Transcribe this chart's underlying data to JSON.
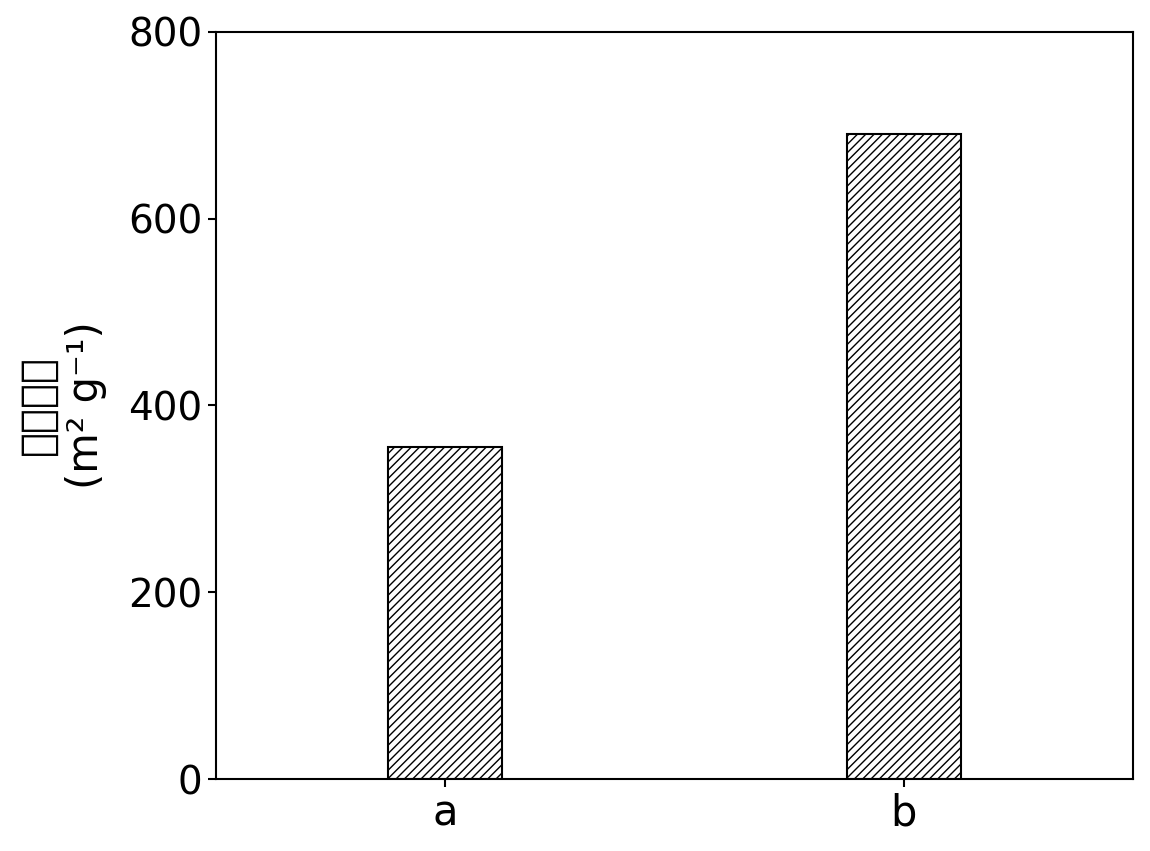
{
  "categories": [
    "a",
    "b"
  ],
  "values": [
    355,
    690
  ],
  "bar_colors": [
    "white",
    "white"
  ],
  "bar_edgecolors": [
    "black",
    "black"
  ],
  "hatch_pattern": "////",
  "ylabel_chinese": "比表面积",
  "ylabel_unit": "(m² g⁻¹)",
  "ylim": [
    0,
    800
  ],
  "yticks": [
    0,
    200,
    400,
    600,
    800
  ],
  "bar_width": 0.25,
  "x_positions": [
    1,
    2
  ],
  "xlim": [
    0.5,
    2.5
  ],
  "background_color": "#ffffff",
  "tick_fontsize": 28,
  "label_fontsize": 30,
  "xtick_fontsize": 30,
  "spine_linewidth": 1.5,
  "fig_width": 11.5,
  "fig_height": 8.51
}
